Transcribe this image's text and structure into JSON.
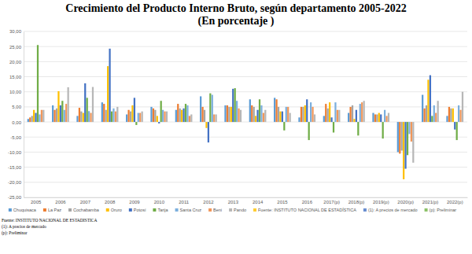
{
  "chart_data": {
    "type": "bar",
    "title": "Crecimiento del Producto Interno Bruto, según departamento 2005-2022",
    "subtitle": "(En porcentaje )",
    "categories": [
      "2005",
      "2006",
      "2007",
      "2008",
      "2009",
      "2010",
      "2011",
      "2012",
      "2013",
      "2014",
      "2015",
      "2016",
      "2017(p)",
      "2018(p)",
      "2019(p)",
      "2020(p)",
      "2021(p)",
      "2022(p)"
    ],
    "series": [
      {
        "name": "Chuquisaca",
        "color": "#5B9BD5",
        "values": [
          1,
          5.5,
          2,
          6.5,
          2.5,
          5,
          4,
          8.5,
          5.5,
          7.5,
          8,
          1.5,
          2,
          3,
          3,
          -10,
          9,
          2
        ]
      },
      {
        "name": "La Paz",
        "color": "#ED7D31",
        "values": [
          1.5,
          4,
          4.7,
          6,
          4,
          4.5,
          6,
          5,
          5.5,
          5.5,
          7.5,
          5,
          6,
          5,
          2.5,
          -10.5,
          4.5,
          5
        ]
      },
      {
        "name": "Cochabamba",
        "color": "#A5A5A5",
        "values": [
          2,
          4.5,
          3.5,
          4,
          3.5,
          4,
          4.5,
          4,
          5,
          5,
          5,
          5,
          4.5,
          5.5,
          2.5,
          -9.5,
          5.5,
          4.5
        ]
      },
      {
        "name": "Oruro",
        "color": "#FFC000",
        "values": [
          4,
          10.2,
          3,
          18.5,
          5.5,
          2,
          4,
          -2,
          5,
          2,
          3.5,
          5.5,
          6.5,
          1,
          3,
          -19,
          14,
          4.5
        ]
      },
      {
        "name": "Potosí",
        "color": "#4472C4",
        "values": [
          3,
          5.5,
          12.8,
          24.3,
          8,
          -0.5,
          4.5,
          -6.8,
          11,
          4,
          3.5,
          7.5,
          1.5,
          4,
          2.5,
          -15.5,
          15.5,
          -2.5
        ]
      },
      {
        "name": "Tarija",
        "color": "#70AD47",
        "values": [
          25.5,
          7,
          8,
          3.5,
          -1,
          7,
          6,
          9.5,
          11.2,
          7.5,
          -2.8,
          -6,
          -3.5,
          -4.5,
          -5.5,
          -11,
          2,
          -6
        ]
      },
      {
        "name": "Santa Cruz",
        "color": "#7CAFDD",
        "values": [
          2.5,
          4,
          3.6,
          4.5,
          3,
          4,
          5.5,
          9,
          7,
          5.5,
          5,
          6.5,
          6.5,
          6,
          4,
          -4,
          5.5,
          5.5
        ]
      },
      {
        "name": "Beni",
        "color": "#F1975A",
        "values": [
          4,
          6,
          3,
          3.5,
          3,
          3.5,
          2,
          2.5,
          4.5,
          3,
          5,
          5,
          4,
          6.5,
          2,
          -6.5,
          3,
          4
        ]
      },
      {
        "name": "Pando",
        "color": "#B7B7B7",
        "values": [
          4,
          11.5,
          11.6,
          5,
          3.5,
          3.5,
          2.5,
          2.5,
          4,
          4,
          3,
          2.5,
          4,
          7,
          3,
          -13.5,
          7,
          10
        ]
      },
      {
        "name": "Fuente: INSTITUTO NACIONAL DE ESTADÍSTICA",
        "color": "#FFCD33",
        "values": [
          null,
          null,
          null,
          null,
          null,
          null,
          null,
          null,
          null,
          null,
          null,
          null,
          null,
          null,
          null,
          null,
          null,
          null
        ]
      },
      {
        "name": "(1): A precios de mercado",
        "color": "#698ED0",
        "values": [
          null,
          null,
          null,
          null,
          null,
          null,
          null,
          null,
          null,
          null,
          null,
          null,
          null,
          null,
          null,
          null,
          null,
          null
        ]
      },
      {
        "name": "(p): Preliminar",
        "color": "#8CC168",
        "values": [
          null,
          null,
          null,
          null,
          null,
          null,
          null,
          null,
          null,
          null,
          null,
          null,
          null,
          null,
          null,
          null,
          null,
          null
        ]
      }
    ],
    "ylim": [
      -25,
      30
    ],
    "yticks": [
      {
        "value": -25,
        "label": "-25,00"
      },
      {
        "value": -20,
        "label": "-20,00"
      },
      {
        "value": -15,
        "label": "-15,00"
      },
      {
        "value": -10,
        "label": "-10,00"
      },
      {
        "value": -5,
        "label": "-5,00"
      },
      {
        "value": 0,
        "label": "0,00"
      },
      {
        "value": 5,
        "label": "5,00"
      },
      {
        "value": 10,
        "label": "10,00"
      },
      {
        "value": 15,
        "label": "15,00"
      },
      {
        "value": 20,
        "label": "20,00"
      },
      {
        "value": 25,
        "label": "25,00"
      },
      {
        "value": 30,
        "label": "30,00"
      }
    ],
    "grid": true,
    "legend": "bottom",
    "annotations": [
      "Fuente: INSTITUTO NACIONAL DE ESTADISTICA",
      "(1): A precios de mercado",
      "(p): Preliminar"
    ]
  }
}
